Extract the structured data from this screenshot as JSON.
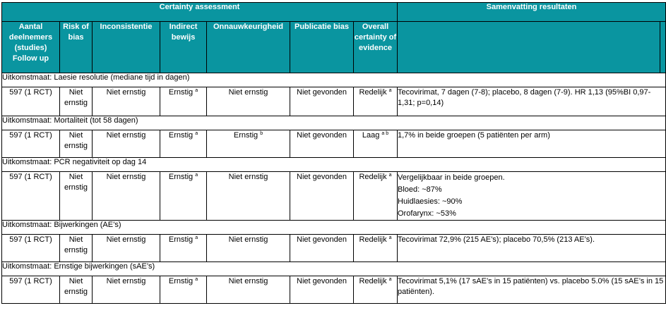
{
  "header": {
    "certainty": "Certainty assessment",
    "summary": "Samenvatting resultaten",
    "cols": [
      "Aantal deelnemers (studies) Follow up",
      "Risk of bias",
      "Inconsistentie",
      "Indirect bewijs",
      "Onnauwkeurigheid",
      "Publicatie bias",
      "Overall certainty of evidence"
    ]
  },
  "outcomes": [
    {
      "title": "Uitkomstmaat: Laesie resolutie (mediane tijd in dagen)",
      "participants": "597 (1 RCT)",
      "risk": "Niet ernstig",
      "inconsistency": "Niet ernstig",
      "indirect": "Ernstig",
      "indirect_sup": "a",
      "imprecision": "Niet ernstig",
      "imprecision_sup": "",
      "publication": "Niet gevonden",
      "certainty": "Redelijk",
      "certainty_sup": "a",
      "result": "Tecovirimat, 7 dagen (7-8); placebo, 8 dagen (7-9). HR 1,13 (95%BI 0,97-1,31; p=0,14)"
    },
    {
      "title": "Uitkomstmaat: Mortaliteit (tot 58 dagen)",
      "participants": "597 (1 RCT)",
      "risk": "Niet ernstig",
      "inconsistency": "Niet ernstig",
      "indirect": "Ernstig",
      "indirect_sup": "a",
      "imprecision": "Ernstig",
      "imprecision_sup": "b",
      "publication": "Niet gevonden",
      "certainty": "Laag",
      "certainty_sup": "a b",
      "result": "1,7% in beide groepen (5 patiënten per arm)"
    },
    {
      "title": "Uitkomstmaat: PCR negativiteit op dag 14",
      "participants": "597 (1 RCT)",
      "risk": "Niet ernstig",
      "inconsistency": "Niet ernstig",
      "indirect": "Ernstig",
      "indirect_sup": "a",
      "imprecision": "Niet ernstig",
      "imprecision_sup": "",
      "publication": "Niet gevonden",
      "certainty": "Redelijk",
      "certainty_sup": "a",
      "result_lines": [
        "Vergelijkbaar in beide groepen.",
        "Bloed: ~87%",
        "Huidlaesies: ~90%",
        "Orofarynx: ~53%"
      ]
    },
    {
      "title": "Uitkomstmaat: Bijwerkingen (AE’s)",
      "participants": "597 (1 RCT)",
      "risk": "Niet ernstig",
      "inconsistency": "Niet ernstig",
      "indirect": "Ernstig",
      "indirect_sup": "a",
      "imprecision": "Niet ernstig",
      "imprecision_sup": "",
      "publication": "Niet gevonden",
      "certainty": "Redelijk",
      "certainty_sup": "a",
      "result": "Tecovirimat 72,9% (215 AE’s); placebo 70,5% (213 AE’s)."
    },
    {
      "title": "Uitkomstmaat: Ernstige bijwerkingen (sAE’s)",
      "participants": "597 (1 RCT)",
      "risk": "Niet ernstig",
      "inconsistency": "Niet ernstig",
      "indirect": "Ernstig",
      "indirect_sup": "a",
      "imprecision": "Niet ernstig",
      "imprecision_sup": "",
      "publication": "Niet gevonden",
      "certainty": "Redelijk",
      "certainty_sup": "a",
      "result": "Tecovirimat 5,1% (17 sAE’s in 15 patiënten) vs. placebo 5.0% (15 sAE’s in 15 patiënten)."
    }
  ],
  "colors": {
    "header_bg": "#0a95a0",
    "header_text": "#ffffff"
  }
}
